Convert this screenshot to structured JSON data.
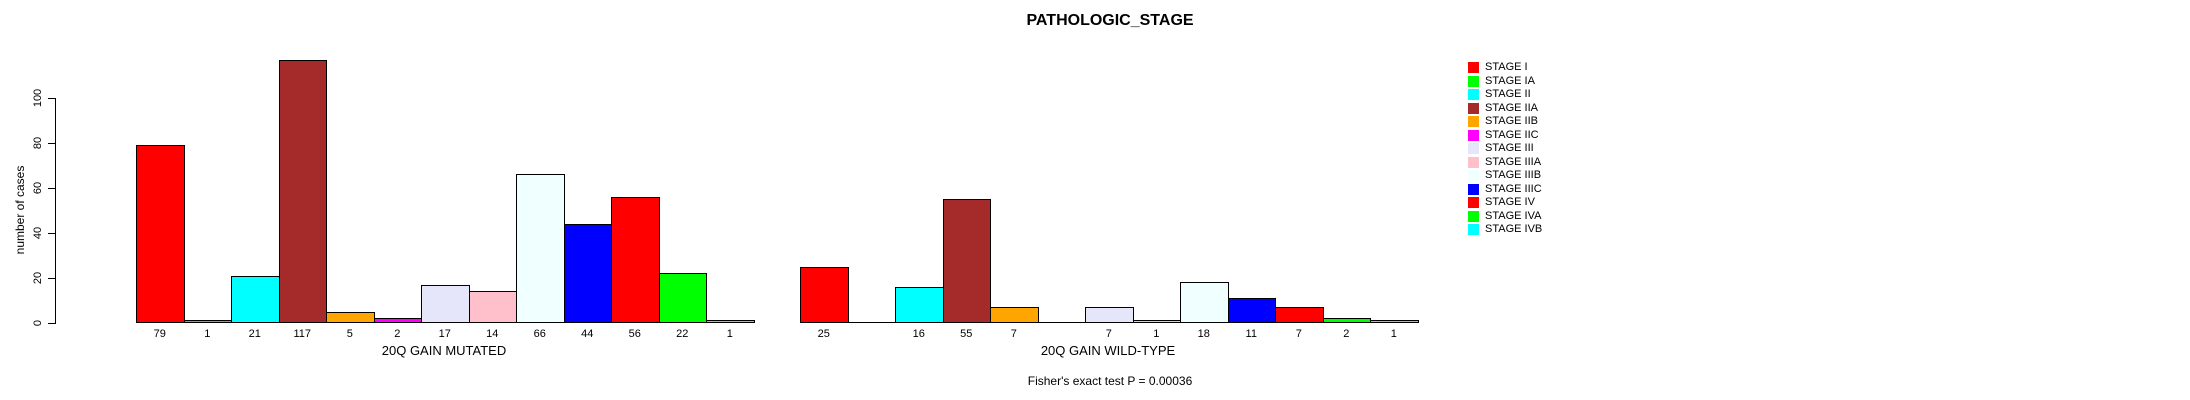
{
  "chart_data": {
    "type": "bar",
    "title": "PATHOLOGIC_STAGE",
    "ylabel": "number of cases",
    "yticks": [
      0,
      20,
      40,
      60,
      80,
      100
    ],
    "ylim": [
      0,
      117
    ],
    "grid": false,
    "legend_position": "right",
    "categories": [
      "STAGE I",
      "STAGE IA",
      "STAGE II",
      "STAGE IIA",
      "STAGE IIB",
      "STAGE IIC",
      "STAGE III",
      "STAGE IIIA",
      "STAGE IIIB",
      "STAGE IIIC",
      "STAGE IV",
      "STAGE IVA",
      "STAGE IVB"
    ],
    "colors": [
      "#FF0000",
      "#00FF00",
      "#00FFFF",
      "#A52A2A",
      "#FFA500",
      "#FF00FF",
      "#E6E6FA",
      "#FFC0CB",
      "#F0FFFF",
      "#0000FF",
      "#FF0000",
      "#00FF00",
      "#00FFFF"
    ],
    "series": [
      {
        "name": "20Q GAIN MUTATED",
        "values": [
          79,
          1,
          21,
          117,
          5,
          2,
          17,
          14,
          66,
          44,
          56,
          22,
          1
        ]
      },
      {
        "name": "20Q GAIN WILD-TYPE",
        "values": [
          25,
          0,
          16,
          55,
          7,
          0,
          7,
          1,
          18,
          11,
          7,
          2,
          1
        ]
      }
    ],
    "annotation": "Fisher's exact test P = 0.00036"
  }
}
